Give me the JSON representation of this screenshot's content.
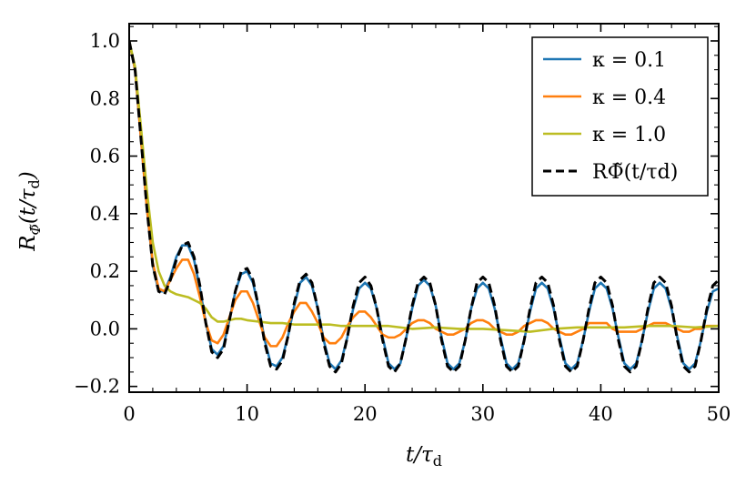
{
  "chart_data": {
    "type": "line",
    "xlabel": "t/τd",
    "ylabel": "RΦ̃(t/τd)",
    "xlim": [
      0,
      50
    ],
    "ylim": [
      -0.22,
      1.06
    ],
    "xticks": [
      0,
      10,
      20,
      30,
      40,
      50
    ],
    "xtick_labels": [
      "0",
      "10",
      "20",
      "30",
      "40",
      "50"
    ],
    "yticks": [
      -0.2,
      0.0,
      0.2,
      0.4,
      0.6,
      0.8,
      1.0
    ],
    "ytick_labels": [
      "−0.2",
      "0.0",
      "0.2",
      "0.4",
      "0.6",
      "0.8",
      "1.0"
    ],
    "grid": false,
    "legend_position": "top-right",
    "series": [
      {
        "name": "κ = 0.1",
        "color": "#1f77b4",
        "style": "solid",
        "x": [
          0,
          0.5,
          1,
          1.5,
          2,
          2.5,
          3,
          3.5,
          4,
          4.5,
          5,
          5.5,
          6,
          6.5,
          7,
          7.5,
          8,
          8.5,
          9,
          9.5,
          10,
          10.5,
          11,
          11.5,
          12,
          12.5,
          13,
          13.5,
          14,
          14.5,
          15,
          15.5,
          16,
          16.5,
          17,
          17.5,
          18,
          18.5,
          19,
          19.5,
          20,
          20.5,
          21,
          21.5,
          22,
          22.5,
          23,
          23.5,
          24,
          24.5,
          25,
          25.5,
          26,
          26.5,
          27,
          27.5,
          28,
          28.5,
          29,
          29.5,
          30,
          30.5,
          31,
          31.5,
          32,
          32.5,
          33,
          33.5,
          34,
          34.5,
          35,
          35.5,
          36,
          36.5,
          37,
          37.5,
          38,
          38.5,
          39,
          39.5,
          40,
          40.5,
          41,
          41.5,
          42,
          42.5,
          43,
          43.5,
          44,
          44.5,
          45,
          45.5,
          46,
          46.5,
          47,
          47.5,
          48,
          48.5,
          49,
          49.5,
          50
        ],
        "y": [
          1.0,
          0.9,
          0.66,
          0.42,
          0.22,
          0.13,
          0.13,
          0.18,
          0.25,
          0.29,
          0.29,
          0.24,
          0.14,
          0.02,
          -0.07,
          -0.09,
          -0.06,
          0.03,
          0.13,
          0.19,
          0.2,
          0.16,
          0.07,
          -0.04,
          -0.12,
          -0.13,
          -0.1,
          -0.02,
          0.08,
          0.16,
          0.18,
          0.15,
          0.07,
          -0.04,
          -0.12,
          -0.14,
          -0.11,
          -0.03,
          0.07,
          0.14,
          0.16,
          0.14,
          0.07,
          -0.03,
          -0.12,
          -0.14,
          -0.12,
          -0.03,
          0.07,
          0.15,
          0.17,
          0.15,
          0.08,
          -0.03,
          -0.12,
          -0.14,
          -0.12,
          -0.04,
          0.07,
          0.14,
          0.16,
          0.14,
          0.07,
          -0.03,
          -0.12,
          -0.14,
          -0.12,
          -0.04,
          0.06,
          0.14,
          0.16,
          0.14,
          0.07,
          -0.03,
          -0.12,
          -0.14,
          -0.12,
          -0.04,
          0.06,
          0.14,
          0.16,
          0.14,
          0.07,
          -0.03,
          -0.12,
          -0.14,
          -0.12,
          -0.04,
          0.06,
          0.14,
          0.16,
          0.14,
          0.07,
          -0.03,
          -0.12,
          -0.14,
          -0.12,
          -0.04,
          0.06,
          0.13,
          0.14
        ]
      },
      {
        "name": "κ = 0.4",
        "color": "#ff7f0e",
        "style": "solid",
        "x": [
          0,
          0.5,
          1,
          1.5,
          2,
          2.5,
          3,
          3.5,
          4,
          4.5,
          5,
          5.5,
          6,
          6.5,
          7,
          7.5,
          8,
          8.5,
          9,
          9.5,
          10,
          10.5,
          11,
          11.5,
          12,
          12.5,
          13,
          13.5,
          14,
          14.5,
          15,
          15.5,
          16,
          16.5,
          17,
          17.5,
          18,
          18.5,
          19,
          19.5,
          20,
          20.5,
          21,
          21.5,
          22,
          22.5,
          23,
          23.5,
          24,
          24.5,
          25,
          25.5,
          26,
          26.5,
          27,
          27.5,
          28,
          28.5,
          29,
          29.5,
          30,
          30.5,
          31,
          31.5,
          32,
          32.5,
          33,
          33.5,
          34,
          34.5,
          35,
          35.5,
          36,
          36.5,
          37,
          37.5,
          38,
          38.5,
          39,
          39.5,
          40,
          40.5,
          41,
          41.5,
          42,
          42.5,
          43,
          43.5,
          44,
          44.5,
          45,
          45.5,
          46,
          46.5,
          47,
          47.5,
          48,
          48.5,
          49,
          49.5,
          50
        ],
        "y": [
          1.0,
          0.9,
          0.66,
          0.42,
          0.23,
          0.14,
          0.13,
          0.17,
          0.21,
          0.24,
          0.24,
          0.19,
          0.11,
          0.02,
          -0.04,
          -0.05,
          -0.02,
          0.04,
          0.1,
          0.13,
          0.13,
          0.09,
          0.03,
          -0.03,
          -0.06,
          -0.06,
          -0.03,
          0.02,
          0.06,
          0.09,
          0.09,
          0.06,
          0.02,
          -0.03,
          -0.05,
          -0.05,
          -0.03,
          0.01,
          0.04,
          0.06,
          0.06,
          0.04,
          0.01,
          -0.02,
          -0.03,
          -0.03,
          -0.02,
          0.0,
          0.02,
          0.03,
          0.03,
          0.02,
          0.0,
          -0.01,
          -0.02,
          -0.02,
          -0.01,
          0.0,
          0.02,
          0.03,
          0.03,
          0.02,
          0.0,
          -0.01,
          -0.02,
          -0.02,
          -0.01,
          0.01,
          0.02,
          0.03,
          0.03,
          0.02,
          0.0,
          -0.01,
          -0.02,
          -0.02,
          -0.01,
          0.0,
          0.02,
          0.02,
          0.02,
          0.02,
          0.0,
          -0.01,
          -0.01,
          -0.01,
          -0.01,
          0.0,
          0.01,
          0.02,
          0.02,
          0.02,
          0.01,
          0.0,
          -0.01,
          -0.01,
          0.0,
          0.0,
          0.01,
          0.01,
          0.01
        ]
      },
      {
        "name": "κ = 1.0",
        "color": "#bcbd22",
        "style": "solid",
        "x": [
          0,
          0.5,
          1,
          1.5,
          2,
          2.5,
          3,
          3.5,
          4,
          4.5,
          5,
          5.5,
          6,
          6.5,
          7,
          7.5,
          8,
          8.5,
          9,
          9.5,
          10,
          11,
          12,
          13,
          14,
          15,
          16,
          17,
          18,
          19,
          20,
          22,
          24,
          26,
          28,
          30,
          32,
          34,
          36,
          38,
          40,
          42,
          44,
          46,
          48,
          50
        ],
        "y": [
          1.0,
          0.91,
          0.7,
          0.48,
          0.3,
          0.2,
          0.15,
          0.13,
          0.12,
          0.115,
          0.11,
          0.1,
          0.09,
          0.07,
          0.04,
          0.025,
          0.025,
          0.03,
          0.035,
          0.035,
          0.03,
          0.025,
          0.02,
          0.02,
          0.015,
          0.015,
          0.015,
          0.015,
          0.01,
          0.01,
          0.01,
          0.01,
          0.0,
          0.005,
          0.0,
          0.0,
          -0.005,
          -0.01,
          0.0,
          0.005,
          0.005,
          0.005,
          0.01,
          0.01,
          0.005,
          0.01
        ]
      },
      {
        "name": "RΦ̃(t/τd)",
        "color": "#000000",
        "style": "dashed",
        "x": [
          0,
          0.5,
          1,
          1.5,
          2,
          2.5,
          3,
          3.5,
          4,
          4.5,
          5,
          5.5,
          6,
          6.5,
          7,
          7.5,
          8,
          8.5,
          9,
          9.5,
          10,
          10.5,
          11,
          11.5,
          12,
          12.5,
          13,
          13.5,
          14,
          14.5,
          15,
          15.5,
          16,
          16.5,
          17,
          17.5,
          18,
          18.5,
          19,
          19.5,
          20,
          20.5,
          21,
          21.5,
          22,
          22.5,
          23,
          23.5,
          24,
          24.5,
          25,
          25.5,
          26,
          26.5,
          27,
          27.5,
          28,
          28.5,
          29,
          29.5,
          30,
          30.5,
          31,
          31.5,
          32,
          32.5,
          33,
          33.5,
          34,
          34.5,
          35,
          35.5,
          36,
          36.5,
          37,
          37.5,
          38,
          38.5,
          39,
          39.5,
          40,
          40.5,
          41,
          41.5,
          42,
          42.5,
          43,
          43.5,
          44,
          44.5,
          45,
          45.5,
          46,
          46.5,
          47,
          47.5,
          48,
          48.5,
          49,
          49.5,
          50
        ],
        "y": [
          1.0,
          0.9,
          0.66,
          0.42,
          0.22,
          0.13,
          0.12,
          0.17,
          0.24,
          0.29,
          0.3,
          0.25,
          0.15,
          0.02,
          -0.08,
          -0.1,
          -0.07,
          0.03,
          0.13,
          0.2,
          0.21,
          0.17,
          0.07,
          -0.05,
          -0.13,
          -0.14,
          -0.11,
          -0.02,
          0.09,
          0.17,
          0.19,
          0.16,
          0.07,
          -0.05,
          -0.13,
          -0.15,
          -0.12,
          -0.03,
          0.08,
          0.16,
          0.18,
          0.15,
          0.07,
          -0.04,
          -0.13,
          -0.15,
          -0.12,
          -0.03,
          0.08,
          0.16,
          0.18,
          0.16,
          0.08,
          -0.04,
          -0.13,
          -0.15,
          -0.13,
          -0.04,
          0.07,
          0.16,
          0.18,
          0.16,
          0.08,
          -0.04,
          -0.13,
          -0.15,
          -0.13,
          -0.04,
          0.07,
          0.16,
          0.18,
          0.16,
          0.08,
          -0.04,
          -0.13,
          -0.15,
          -0.13,
          -0.04,
          0.07,
          0.16,
          0.18,
          0.16,
          0.08,
          -0.04,
          -0.13,
          -0.15,
          -0.13,
          -0.04,
          0.07,
          0.16,
          0.18,
          0.16,
          0.08,
          -0.04,
          -0.13,
          -0.15,
          -0.13,
          -0.04,
          0.07,
          0.15,
          0.17
        ]
      }
    ]
  }
}
